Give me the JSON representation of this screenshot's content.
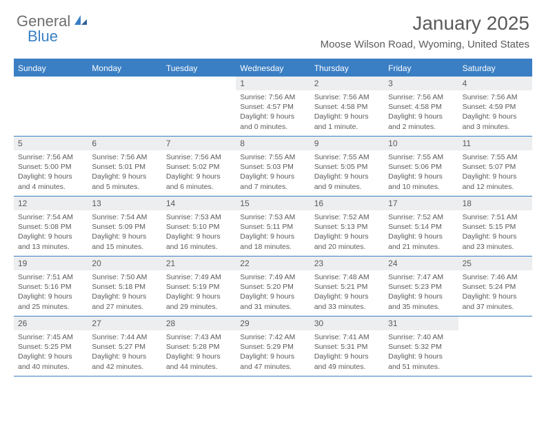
{
  "logo": {
    "text1": "General",
    "text2": "Blue"
  },
  "colors": {
    "accent": "#3a7fc4",
    "text": "#5a5a5a",
    "daybar": "#eceeef",
    "bg": "#ffffff"
  },
  "title": "January 2025",
  "location": "Moose Wilson Road, Wyoming, United States",
  "weekdays": [
    "Sunday",
    "Monday",
    "Tuesday",
    "Wednesday",
    "Thursday",
    "Friday",
    "Saturday"
  ],
  "weeks": [
    [
      {
        "n": "",
        "sunrise": "",
        "sunset": "",
        "daylight": ""
      },
      {
        "n": "",
        "sunrise": "",
        "sunset": "",
        "daylight": ""
      },
      {
        "n": "",
        "sunrise": "",
        "sunset": "",
        "daylight": ""
      },
      {
        "n": "1",
        "sunrise": "Sunrise: 7:56 AM",
        "sunset": "Sunset: 4:57 PM",
        "daylight": "Daylight: 9 hours and 0 minutes."
      },
      {
        "n": "2",
        "sunrise": "Sunrise: 7:56 AM",
        "sunset": "Sunset: 4:58 PM",
        "daylight": "Daylight: 9 hours and 1 minute."
      },
      {
        "n": "3",
        "sunrise": "Sunrise: 7:56 AM",
        "sunset": "Sunset: 4:58 PM",
        "daylight": "Daylight: 9 hours and 2 minutes."
      },
      {
        "n": "4",
        "sunrise": "Sunrise: 7:56 AM",
        "sunset": "Sunset: 4:59 PM",
        "daylight": "Daylight: 9 hours and 3 minutes."
      }
    ],
    [
      {
        "n": "5",
        "sunrise": "Sunrise: 7:56 AM",
        "sunset": "Sunset: 5:00 PM",
        "daylight": "Daylight: 9 hours and 4 minutes."
      },
      {
        "n": "6",
        "sunrise": "Sunrise: 7:56 AM",
        "sunset": "Sunset: 5:01 PM",
        "daylight": "Daylight: 9 hours and 5 minutes."
      },
      {
        "n": "7",
        "sunrise": "Sunrise: 7:56 AM",
        "sunset": "Sunset: 5:02 PM",
        "daylight": "Daylight: 9 hours and 6 minutes."
      },
      {
        "n": "8",
        "sunrise": "Sunrise: 7:55 AM",
        "sunset": "Sunset: 5:03 PM",
        "daylight": "Daylight: 9 hours and 7 minutes."
      },
      {
        "n": "9",
        "sunrise": "Sunrise: 7:55 AM",
        "sunset": "Sunset: 5:05 PM",
        "daylight": "Daylight: 9 hours and 9 minutes."
      },
      {
        "n": "10",
        "sunrise": "Sunrise: 7:55 AM",
        "sunset": "Sunset: 5:06 PM",
        "daylight": "Daylight: 9 hours and 10 minutes."
      },
      {
        "n": "11",
        "sunrise": "Sunrise: 7:55 AM",
        "sunset": "Sunset: 5:07 PM",
        "daylight": "Daylight: 9 hours and 12 minutes."
      }
    ],
    [
      {
        "n": "12",
        "sunrise": "Sunrise: 7:54 AM",
        "sunset": "Sunset: 5:08 PM",
        "daylight": "Daylight: 9 hours and 13 minutes."
      },
      {
        "n": "13",
        "sunrise": "Sunrise: 7:54 AM",
        "sunset": "Sunset: 5:09 PM",
        "daylight": "Daylight: 9 hours and 15 minutes."
      },
      {
        "n": "14",
        "sunrise": "Sunrise: 7:53 AM",
        "sunset": "Sunset: 5:10 PM",
        "daylight": "Daylight: 9 hours and 16 minutes."
      },
      {
        "n": "15",
        "sunrise": "Sunrise: 7:53 AM",
        "sunset": "Sunset: 5:11 PM",
        "daylight": "Daylight: 9 hours and 18 minutes."
      },
      {
        "n": "16",
        "sunrise": "Sunrise: 7:52 AM",
        "sunset": "Sunset: 5:13 PM",
        "daylight": "Daylight: 9 hours and 20 minutes."
      },
      {
        "n": "17",
        "sunrise": "Sunrise: 7:52 AM",
        "sunset": "Sunset: 5:14 PM",
        "daylight": "Daylight: 9 hours and 21 minutes."
      },
      {
        "n": "18",
        "sunrise": "Sunrise: 7:51 AM",
        "sunset": "Sunset: 5:15 PM",
        "daylight": "Daylight: 9 hours and 23 minutes."
      }
    ],
    [
      {
        "n": "19",
        "sunrise": "Sunrise: 7:51 AM",
        "sunset": "Sunset: 5:16 PM",
        "daylight": "Daylight: 9 hours and 25 minutes."
      },
      {
        "n": "20",
        "sunrise": "Sunrise: 7:50 AM",
        "sunset": "Sunset: 5:18 PM",
        "daylight": "Daylight: 9 hours and 27 minutes."
      },
      {
        "n": "21",
        "sunrise": "Sunrise: 7:49 AM",
        "sunset": "Sunset: 5:19 PM",
        "daylight": "Daylight: 9 hours and 29 minutes."
      },
      {
        "n": "22",
        "sunrise": "Sunrise: 7:49 AM",
        "sunset": "Sunset: 5:20 PM",
        "daylight": "Daylight: 9 hours and 31 minutes."
      },
      {
        "n": "23",
        "sunrise": "Sunrise: 7:48 AM",
        "sunset": "Sunset: 5:21 PM",
        "daylight": "Daylight: 9 hours and 33 minutes."
      },
      {
        "n": "24",
        "sunrise": "Sunrise: 7:47 AM",
        "sunset": "Sunset: 5:23 PM",
        "daylight": "Daylight: 9 hours and 35 minutes."
      },
      {
        "n": "25",
        "sunrise": "Sunrise: 7:46 AM",
        "sunset": "Sunset: 5:24 PM",
        "daylight": "Daylight: 9 hours and 37 minutes."
      }
    ],
    [
      {
        "n": "26",
        "sunrise": "Sunrise: 7:45 AM",
        "sunset": "Sunset: 5:25 PM",
        "daylight": "Daylight: 9 hours and 40 minutes."
      },
      {
        "n": "27",
        "sunrise": "Sunrise: 7:44 AM",
        "sunset": "Sunset: 5:27 PM",
        "daylight": "Daylight: 9 hours and 42 minutes."
      },
      {
        "n": "28",
        "sunrise": "Sunrise: 7:43 AM",
        "sunset": "Sunset: 5:28 PM",
        "daylight": "Daylight: 9 hours and 44 minutes."
      },
      {
        "n": "29",
        "sunrise": "Sunrise: 7:42 AM",
        "sunset": "Sunset: 5:29 PM",
        "daylight": "Daylight: 9 hours and 47 minutes."
      },
      {
        "n": "30",
        "sunrise": "Sunrise: 7:41 AM",
        "sunset": "Sunset: 5:31 PM",
        "daylight": "Daylight: 9 hours and 49 minutes."
      },
      {
        "n": "31",
        "sunrise": "Sunrise: 7:40 AM",
        "sunset": "Sunset: 5:32 PM",
        "daylight": "Daylight: 9 hours and 51 minutes."
      },
      {
        "n": "",
        "sunrise": "",
        "sunset": "",
        "daylight": ""
      }
    ]
  ]
}
